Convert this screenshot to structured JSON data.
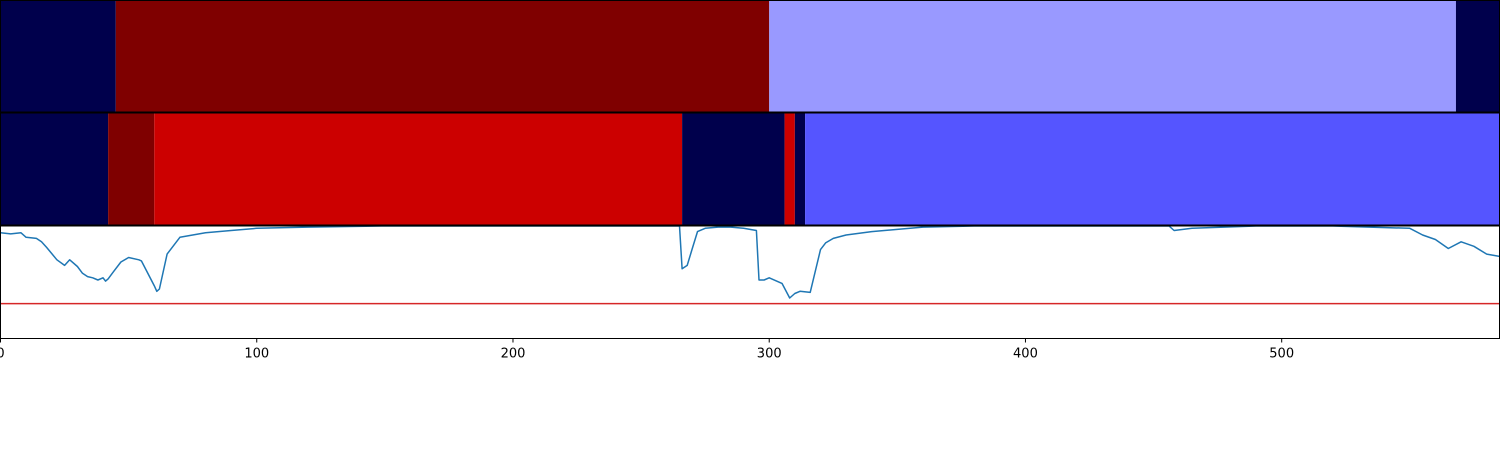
{
  "chart_data": [
    {
      "type": "heatmap",
      "panel": "top-segmentation",
      "xlim": [
        0,
        585
      ],
      "segments": [
        {
          "start": 0,
          "end": 45,
          "color": "#00004c"
        },
        {
          "start": 45,
          "end": 300,
          "color": "#7f0000"
        },
        {
          "start": 300,
          "end": 568,
          "color": "#9999ff"
        },
        {
          "start": 568,
          "end": 585,
          "color": "#00004c"
        }
      ]
    },
    {
      "type": "heatmap",
      "panel": "middle-segmentation",
      "xlim": [
        0,
        585
      ],
      "segments": [
        {
          "start": 0,
          "end": 42,
          "color": "#00004c"
        },
        {
          "start": 42,
          "end": 60,
          "color": "#7f0000"
        },
        {
          "start": 60,
          "end": 266,
          "color": "#cc0000"
        },
        {
          "start": 266,
          "end": 306,
          "color": "#00004c"
        },
        {
          "start": 306,
          "end": 310,
          "color": "#cc0000"
        },
        {
          "start": 310,
          "end": 314,
          "color": "#00004c"
        },
        {
          "start": 314,
          "end": 585,
          "color": "#5555ff"
        }
      ]
    },
    {
      "type": "line",
      "panel": "bottom-curve",
      "xlim": [
        0,
        585
      ],
      "ylim": [
        0,
        1
      ],
      "xticks": [
        0,
        100,
        200,
        300,
        400,
        500
      ],
      "threshold": {
        "value": 0.31,
        "color": "#d62728"
      },
      "series": [
        {
          "color": "#1f77b4",
          "x": [
            0,
            4,
            8,
            10,
            14,
            16,
            18,
            22,
            25,
            27,
            30,
            32,
            34,
            36,
            38,
            40,
            41,
            42,
            44,
            47,
            50,
            54,
            55,
            60,
            61,
            62,
            65,
            70,
            75,
            80,
            90,
            100,
            120,
            150,
            200,
            250,
            265,
            266,
            268,
            270,
            272,
            275,
            280,
            285,
            290,
            295,
            296,
            298,
            300,
            305,
            308,
            310,
            312,
            316,
            320,
            322,
            325,
            330,
            340,
            350,
            360,
            380,
            400,
            430,
            456,
            458,
            465,
            490,
            520,
            550,
            555,
            560,
            565,
            570,
            575,
            580,
            585
          ],
          "y": [
            0.94,
            0.93,
            0.94,
            0.9,
            0.89,
            0.86,
            0.81,
            0.7,
            0.65,
            0.7,
            0.64,
            0.58,
            0.55,
            0.54,
            0.52,
            0.54,
            0.51,
            0.53,
            0.59,
            0.68,
            0.72,
            0.7,
            0.69,
            0.47,
            0.42,
            0.44,
            0.75,
            0.9,
            0.92,
            0.94,
            0.96,
            0.98,
            0.99,
            1.0,
            1.0,
            1.0,
            1.0,
            0.62,
            0.65,
            0.8,
            0.95,
            0.98,
            0.99,
            0.99,
            0.98,
            0.96,
            0.52,
            0.52,
            0.54,
            0.49,
            0.36,
            0.4,
            0.42,
            0.41,
            0.79,
            0.85,
            0.89,
            0.92,
            0.95,
            0.97,
            0.99,
            1.0,
            1.0,
            1.0,
            1.0,
            0.96,
            0.98,
            1.0,
            1.0,
            0.98,
            0.92,
            0.88,
            0.8,
            0.86,
            0.82,
            0.75,
            0.73
          ]
        }
      ]
    }
  ]
}
